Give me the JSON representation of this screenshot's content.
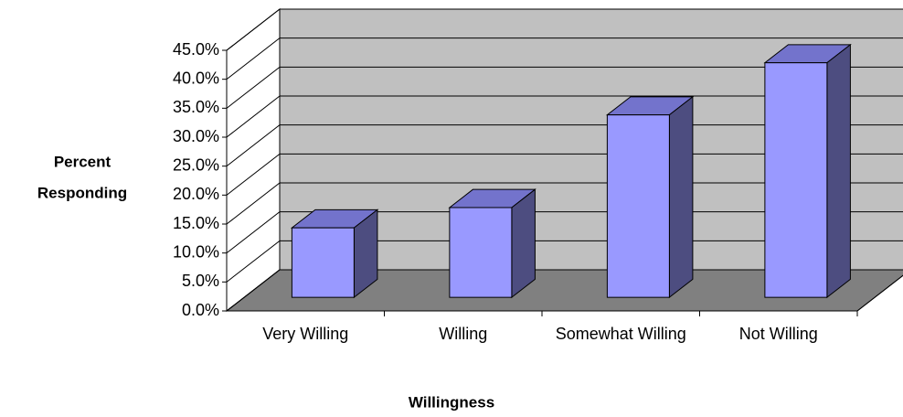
{
  "chart_data": {
    "type": "bar3d",
    "x_label": "Willingness",
    "y_label": [
      "Percent",
      "Responding"
    ],
    "categories": [
      "Very Willing",
      "Willing",
      "Somewhat Willing",
      "Not Willing"
    ],
    "values": [
      12,
      15.5,
      31.5,
      40.5
    ],
    "color": "#9999ff",
    "ylim": [
      0,
      45
    ],
    "yticks": [
      {
        "value": 0,
        "label": "0.0%"
      },
      {
        "value": 5,
        "label": "5.0%"
      },
      {
        "value": 10,
        "label": "10.0%"
      },
      {
        "value": 15,
        "label": "15.0%"
      },
      {
        "value": 20,
        "label": "20.0%"
      },
      {
        "value": 25,
        "label": "25.0%"
      },
      {
        "value": 30,
        "label": "30.0%"
      },
      {
        "value": 35,
        "label": "35.0%"
      },
      {
        "value": 40,
        "label": "40.0%"
      },
      {
        "value": 45,
        "label": "45.0%"
      }
    ],
    "grid": true
  }
}
